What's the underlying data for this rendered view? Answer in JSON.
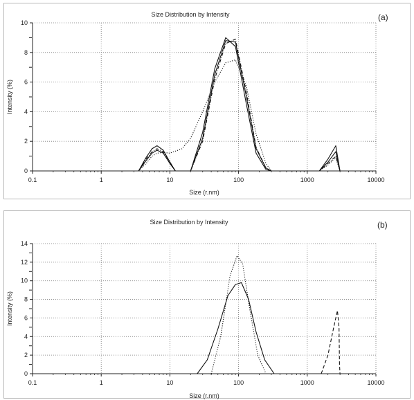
{
  "chart_data": [
    {
      "id": "a",
      "type": "line",
      "title": "Size Distribution by Intensity",
      "panel_label": "(a)",
      "xlabel": "Size (r.nm)",
      "ylabel": "Intensity (%)",
      "x_scale": "log",
      "xlim": [
        0.1,
        10000
      ],
      "ylim": [
        0,
        10
      ],
      "x_ticks": [
        "0.1",
        "1",
        "10",
        "100",
        "1000",
        "10000"
      ],
      "y_ticks": [
        "0",
        "2",
        "4",
        "6",
        "8",
        "10"
      ],
      "grid": true,
      "series": [
        {
          "style": "solid",
          "x": [
            3.5,
            4.5,
            5.5,
            6.5,
            8,
            10,
            12,
            15,
            20,
            30,
            45,
            65,
            90,
            130,
            180,
            250,
            300,
            1500,
            2000,
            2600,
            3000
          ],
          "y": [
            0,
            0.9,
            1.5,
            1.7,
            1.4,
            0.6,
            0,
            0,
            0,
            2.6,
            6.9,
            9.0,
            8.4,
            4.5,
            1.2,
            0.1,
            0,
            0,
            0.8,
            1.7,
            0
          ]
        },
        {
          "style": "solid",
          "x": [
            3.5,
            4.5,
            5.5,
            6.5,
            8,
            10,
            12,
            15,
            20,
            30,
            45,
            65,
            90,
            130,
            180,
            250,
            300,
            1500,
            2000,
            2600,
            3000
          ],
          "y": [
            0,
            0.7,
            1.2,
            1.4,
            1.2,
            0.5,
            0,
            0,
            0,
            2.2,
            6.5,
            8.8,
            8.7,
            5.0,
            1.5,
            0.2,
            0,
            0,
            0.6,
            1.3,
            0
          ]
        },
        {
          "style": "dash-dot",
          "x": [
            3.5,
            4.5,
            5.5,
            6.5,
            8,
            10,
            12,
            15,
            20,
            30,
            45,
            65,
            90,
            130,
            180,
            250,
            300,
            1500,
            2000,
            2600,
            3000
          ],
          "y": [
            0,
            0.8,
            1.3,
            1.5,
            1.3,
            0.6,
            0,
            0,
            0,
            2.0,
            6.2,
            8.6,
            8.9,
            5.3,
            1.6,
            0.2,
            0,
            0,
            0.5,
            1.0,
            0
          ]
        },
        {
          "style": "dotted",
          "x": [
            3.5,
            4.5,
            5.5,
            6.5,
            8,
            10,
            15,
            20,
            30,
            45,
            65,
            90,
            130,
            180,
            250,
            300,
            1500,
            2000,
            2600,
            3000
          ],
          "y": [
            0,
            0.5,
            1.0,
            1.2,
            1.25,
            1.2,
            1.5,
            2.2,
            4.0,
            6.0,
            7.3,
            7.5,
            5.7,
            2.5,
            0.5,
            0,
            0,
            0.4,
            0.9,
            0
          ]
        }
      ]
    },
    {
      "id": "b",
      "type": "line",
      "title": "Size Distribution by Intensity",
      "panel_label": "(b)",
      "xlabel": "Size (r.nm)",
      "ylabel": "Intensity (%)",
      "x_scale": "log",
      "xlim": [
        0.1,
        10000
      ],
      "ylim": [
        0,
        14
      ],
      "x_ticks": [
        "0.1",
        "1",
        "10",
        "100",
        "1000",
        "10000"
      ],
      "y_ticks": [
        "0",
        "2",
        "4",
        "6",
        "8",
        "10",
        "12",
        "14"
      ],
      "grid": true,
      "series": [
        {
          "style": "solid",
          "x": [
            25,
            35,
            50,
            70,
            90,
            110,
            140,
            180,
            240,
            330
          ],
          "y": [
            0,
            1.5,
            4.8,
            8.4,
            9.6,
            9.8,
            8.0,
            4.5,
            1.5,
            0
          ]
        },
        {
          "style": "dotted",
          "x": [
            40,
            55,
            75,
            95,
            115,
            145,
            190,
            250
          ],
          "y": [
            0,
            4.0,
            10.5,
            12.7,
            11.8,
            7.0,
            2.0,
            0
          ]
        },
        {
          "style": "dashed",
          "x": [
            1600,
            2000,
            2400,
            2750,
            2900,
            2950,
            3000
          ],
          "y": [
            0,
            2.0,
            4.8,
            6.8,
            5.0,
            1.0,
            0
          ]
        }
      ]
    }
  ]
}
